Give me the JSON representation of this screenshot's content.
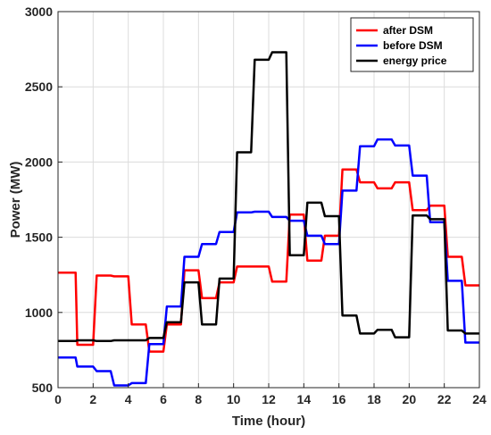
{
  "chart_data": {
    "type": "line",
    "xlabel": "Time (hour)",
    "ylabel": "Power (MW)",
    "xlim": [
      0,
      24
    ],
    "ylim": [
      500,
      3000
    ],
    "xticks": [
      0,
      2,
      4,
      6,
      8,
      10,
      12,
      14,
      16,
      18,
      20,
      22,
      24
    ],
    "yticks": [
      500,
      1000,
      1500,
      2000,
      2500,
      3000
    ],
    "grid": true,
    "legend_position": "top-right",
    "series": [
      {
        "name": "after DSM",
        "color": "#ff0000",
        "x": [
          0,
          1,
          1.1,
          2,
          2.2,
          3,
          3.2,
          4,
          4.2,
          5,
          5.2,
          6,
          6.2,
          7,
          7.2,
          8,
          8.2,
          9,
          9.2,
          10,
          10.2,
          11,
          11.2,
          12,
          12.2,
          13,
          13.2,
          14,
          14.2,
          15,
          15.2,
          16,
          16.2,
          17,
          17.2,
          18,
          18.2,
          19,
          19.2,
          20,
          20.2,
          21,
          21.2,
          22,
          22.2,
          23,
          23.2,
          24
        ],
        "y": [
          1265,
          1265,
          785,
          785,
          1245,
          1245,
          1240,
          1240,
          920,
          920,
          740,
          740,
          920,
          920,
          1280,
          1280,
          1095,
          1095,
          1200,
          1200,
          1305,
          1305,
          1305,
          1305,
          1205,
          1205,
          1650,
          1650,
          1345,
          1345,
          1510,
          1510,
          1950,
          1950,
          1865,
          1865,
          1825,
          1825,
          1865,
          1865,
          1680,
          1680,
          1710,
          1710,
          1370,
          1370,
          1180,
          1180
        ]
      },
      {
        "name": "before DSM",
        "color": "#0000ff",
        "x": [
          0,
          1,
          1.1,
          2,
          2.2,
          3,
          3.2,
          4,
          4.2,
          5,
          5.2,
          6,
          6.2,
          7,
          7.2,
          8,
          8.2,
          9,
          9.2,
          10,
          10.2,
          11,
          11.2,
          12,
          12.2,
          13,
          13.2,
          14,
          14.2,
          15,
          15.2,
          16,
          16.2,
          17,
          17.2,
          18,
          18.2,
          19,
          19.2,
          20,
          20.2,
          21,
          21.2,
          22,
          22.2,
          23,
          23.2,
          24
        ],
        "y": [
          700,
          700,
          640,
          640,
          610,
          610,
          515,
          515,
          530,
          530,
          790,
          790,
          1040,
          1040,
          1370,
          1370,
          1455,
          1455,
          1535,
          1535,
          1665,
          1665,
          1670,
          1670,
          1635,
          1635,
          1610,
          1610,
          1510,
          1510,
          1455,
          1455,
          1810,
          1810,
          2105,
          2105,
          2150,
          2150,
          2110,
          2110,
          1910,
          1910,
          1600,
          1600,
          1210,
          1210,
          800,
          800
        ]
      },
      {
        "name": "energy price",
        "color": "#000000",
        "x": [
          0,
          1,
          1.1,
          2,
          2.2,
          3,
          3.2,
          4,
          4.2,
          5,
          5.2,
          6,
          6.2,
          7,
          7.2,
          8,
          8.2,
          9,
          9.2,
          10,
          10.2,
          11,
          11.2,
          12,
          12.2,
          13,
          13.2,
          14,
          14.2,
          15,
          15.2,
          16,
          16.2,
          17,
          17.2,
          18,
          18.2,
          19,
          19.2,
          20,
          20.2,
          21,
          21.2,
          22,
          22.2,
          23,
          23.2,
          24
        ],
        "y": [
          810,
          810,
          815,
          815,
          810,
          810,
          815,
          815,
          815,
          815,
          830,
          830,
          935,
          935,
          1200,
          1200,
          920,
          920,
          1225,
          1225,
          2065,
          2065,
          2680,
          2680,
          2730,
          2730,
          1380,
          1380,
          1730,
          1730,
          1640,
          1640,
          980,
          980,
          860,
          860,
          885,
          885,
          835,
          835,
          1645,
          1645,
          1620,
          1620,
          880,
          880,
          860,
          860
        ]
      }
    ]
  }
}
